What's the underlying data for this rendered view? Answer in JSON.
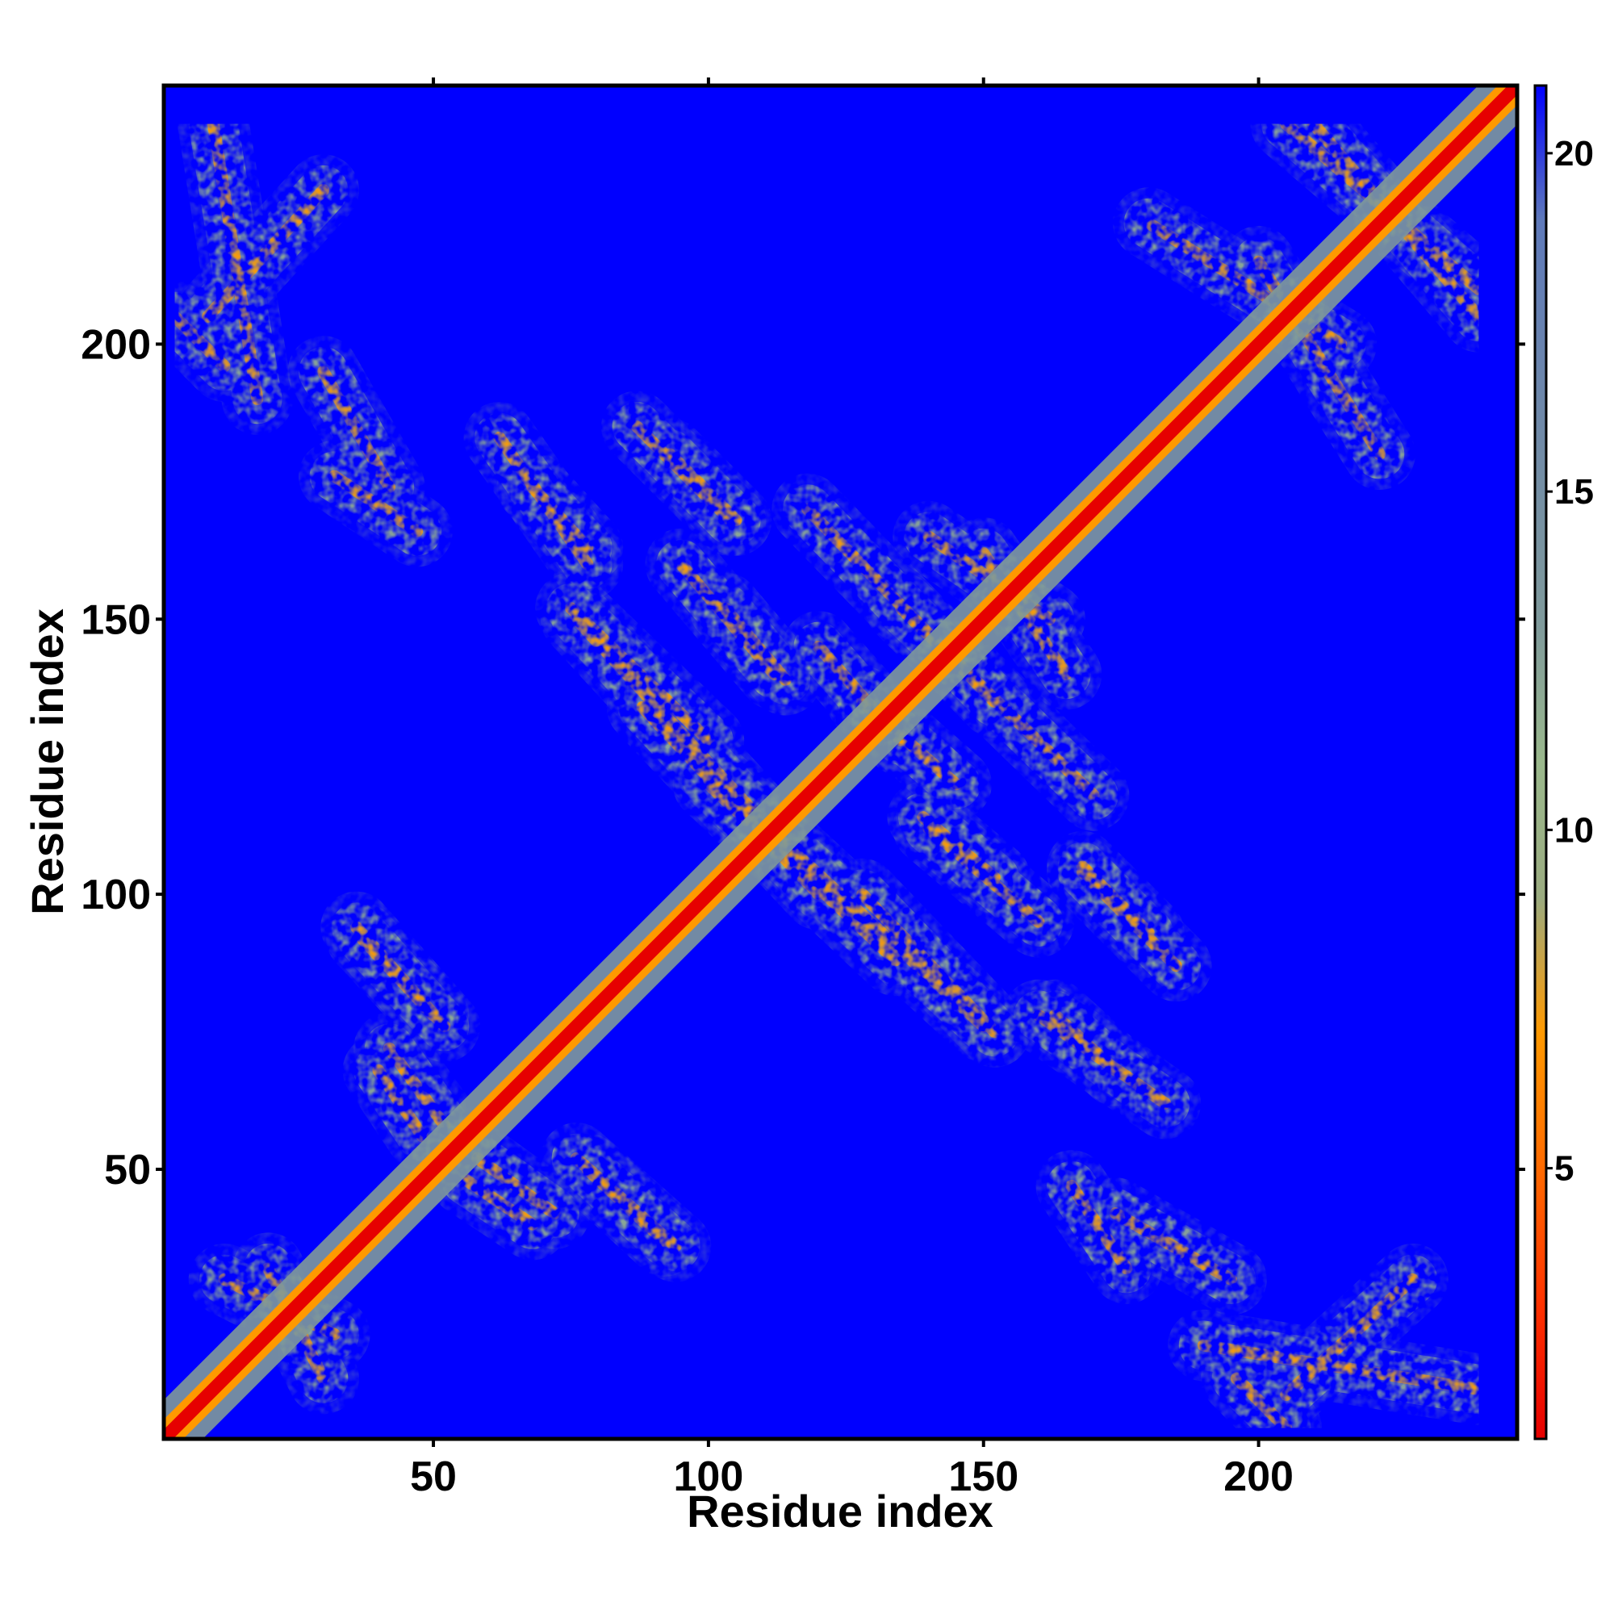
{
  "chart_data": {
    "type": "heatmap",
    "title": "",
    "xlabel": "Residue index",
    "ylabel": "Residue index",
    "xlim": [
      1,
      247
    ],
    "ylim": [
      1,
      247
    ],
    "x_ticks": [
      50,
      100,
      150,
      200
    ],
    "y_ticks": [
      50,
      100,
      150,
      200
    ],
    "z_label": "",
    "z_range": [
      1,
      21
    ],
    "colorbar_ticks": [
      5,
      10,
      15,
      20
    ],
    "colorbar_placement": "right",
    "colormap": [
      {
        "value": 1,
        "color": "#e60000"
      },
      {
        "value": 3,
        "color": "#ff3300"
      },
      {
        "value": 5,
        "color": "#ff6a00"
      },
      {
        "value": 7,
        "color": "#ff9900"
      },
      {
        "value": 9,
        "color": "#9aab80"
      },
      {
        "value": 11,
        "color": "#9ab88c"
      },
      {
        "value": 13,
        "color": "#7f9a9b"
      },
      {
        "value": 16,
        "color": "#6f89a8"
      },
      {
        "value": 19,
        "color": "#5f7aba"
      },
      {
        "value": 21,
        "color": "#0000ff"
      }
    ],
    "background_value": 21,
    "diagonal_contacts": true,
    "contact_bands": [
      {
        "from": [
          3,
          205
        ],
        "to": [
          12,
          196
        ]
      },
      {
        "from": [
          9,
          205
        ],
        "to": [
          30,
          228
        ]
      },
      {
        "from": [
          32,
          176
        ],
        "to": [
          47,
          166
        ]
      },
      {
        "from": [
          68,
          174
        ],
        "to": [
          78,
          163
        ]
      },
      {
        "from": [
          93,
          180
        ],
        "to": [
          105,
          168
        ]
      },
      {
        "from": [
          103,
          152
        ],
        "to": [
          114,
          139
        ]
      },
      {
        "from": [
          75,
          152
        ],
        "to": [
          100,
          128
        ]
      },
      {
        "from": [
          88,
          134
        ],
        "to": [
          120,
          100
        ]
      },
      {
        "from": [
          100,
          122
        ],
        "to": [
          150,
          76
        ]
      },
      {
        "from": [
          135,
          152
        ],
        "to": [
          170,
          118
        ]
      },
      {
        "from": [
          140,
          112
        ],
        "to": [
          160,
          95
        ]
      },
      {
        "from": [
          168,
          104
        ],
        "to": [
          185,
          87
        ]
      },
      {
        "from": [
          160,
          78
        ],
        "to": [
          183,
          62
        ]
      },
      {
        "from": [
          36,
          94
        ],
        "to": [
          52,
          76
        ]
      },
      {
        "from": [
          42,
          72
        ],
        "to": [
          52,
          58
        ]
      },
      {
        "from": [
          56,
          48
        ],
        "to": [
          68,
          40
        ]
      },
      {
        "from": [
          78,
          50
        ],
        "to": [
          92,
          37
        ]
      },
      {
        "from": [
          174,
          42
        ],
        "to": [
          195,
          30
        ]
      },
      {
        "from": [
          190,
          18
        ],
        "to": [
          240,
          10
        ]
      },
      {
        "from": [
          180,
          222
        ],
        "to": [
          215,
          200
        ]
      },
      {
        "from": [
          210,
          240
        ],
        "to": [
          240,
          205
        ]
      },
      {
        "from": [
          12,
          30
        ],
        "to": [
          32,
          20
        ]
      },
      {
        "from": [
          140,
          165
        ],
        "to": [
          162,
          150
        ]
      },
      {
        "from": [
          120,
          145
        ],
        "to": [
          135,
          128
        ]
      }
    ]
  }
}
